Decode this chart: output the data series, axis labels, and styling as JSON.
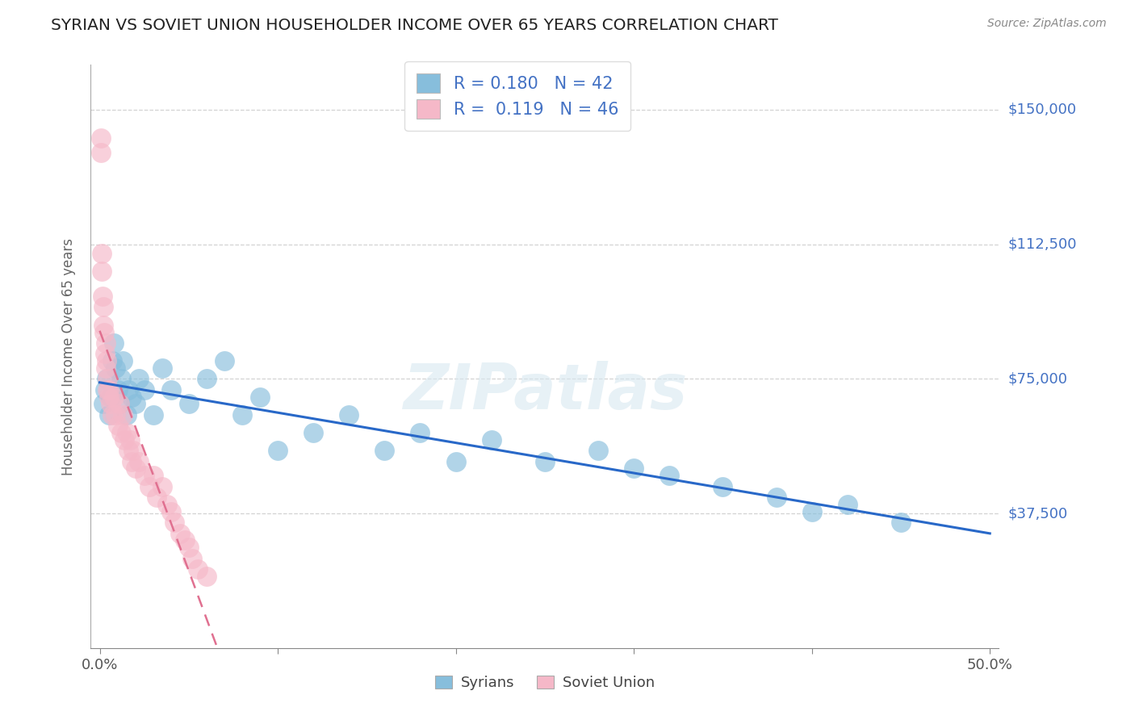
{
  "title": "SYRIAN VS SOVIET UNION HOUSEHOLDER INCOME OVER 65 YEARS CORRELATION CHART",
  "source": "Source: ZipAtlas.com",
  "ylabel": "Householder Income Over 65 years",
  "xlim": [
    -0.005,
    0.505
  ],
  "ylim": [
    0,
    162500
  ],
  "yticks": [
    37500,
    75000,
    112500,
    150000
  ],
  "yticklabels": [
    "$37,500",
    "$75,000",
    "$112,500",
    "$150,000"
  ],
  "legend_R_syrian": "0.180",
  "legend_N_syrian": "42",
  "legend_R_soviet": "0.119",
  "legend_N_soviet": "46",
  "syrian_color": "#87bedc",
  "soviet_color": "#f5b8c8",
  "trend_syrian_color": "#2868c8",
  "trend_soviet_color": "#e07090",
  "watermark": "ZIPatlas",
  "background_color": "#ffffff",
  "grid_color": "#c8c8c8",
  "tick_label_color": "#4472c4",
  "syrian_x": [
    0.002,
    0.003,
    0.004,
    0.005,
    0.006,
    0.007,
    0.008,
    0.009,
    0.01,
    0.011,
    0.012,
    0.013,
    0.015,
    0.016,
    0.018,
    0.02,
    0.022,
    0.025,
    0.03,
    0.035,
    0.04,
    0.05,
    0.06,
    0.07,
    0.08,
    0.09,
    0.1,
    0.12,
    0.14,
    0.16,
    0.18,
    0.2,
    0.22,
    0.25,
    0.28,
    0.3,
    0.32,
    0.35,
    0.38,
    0.4,
    0.42,
    0.45
  ],
  "syrian_y": [
    68000,
    72000,
    75000,
    65000,
    70000,
    80000,
    85000,
    78000,
    72000,
    68000,
    75000,
    80000,
    65000,
    72000,
    70000,
    68000,
    75000,
    72000,
    65000,
    78000,
    72000,
    68000,
    75000,
    80000,
    65000,
    70000,
    55000,
    60000,
    65000,
    55000,
    60000,
    52000,
    58000,
    52000,
    55000,
    50000,
    48000,
    45000,
    42000,
    38000,
    40000,
    35000
  ],
  "soviet_x": [
    0.0005,
    0.0008,
    0.001,
    0.0012,
    0.0015,
    0.002,
    0.0022,
    0.0025,
    0.003,
    0.0032,
    0.0035,
    0.004,
    0.0042,
    0.0045,
    0.005,
    0.0052,
    0.006,
    0.007,
    0.008,
    0.009,
    0.01,
    0.011,
    0.012,
    0.013,
    0.014,
    0.015,
    0.016,
    0.017,
    0.018,
    0.019,
    0.02,
    0.022,
    0.025,
    0.028,
    0.03,
    0.032,
    0.035,
    0.038,
    0.04,
    0.042,
    0.045,
    0.048,
    0.05,
    0.052,
    0.055,
    0.06
  ],
  "soviet_y": [
    142000,
    138000,
    110000,
    105000,
    98000,
    90000,
    95000,
    88000,
    82000,
    85000,
    78000,
    80000,
    75000,
    72000,
    70000,
    72000,
    68000,
    65000,
    70000,
    65000,
    62000,
    68000,
    60000,
    65000,
    58000,
    60000,
    55000,
    58000,
    52000,
    55000,
    50000,
    52000,
    48000,
    45000,
    48000,
    42000,
    45000,
    40000,
    38000,
    35000,
    32000,
    30000,
    28000,
    25000,
    22000,
    20000
  ]
}
